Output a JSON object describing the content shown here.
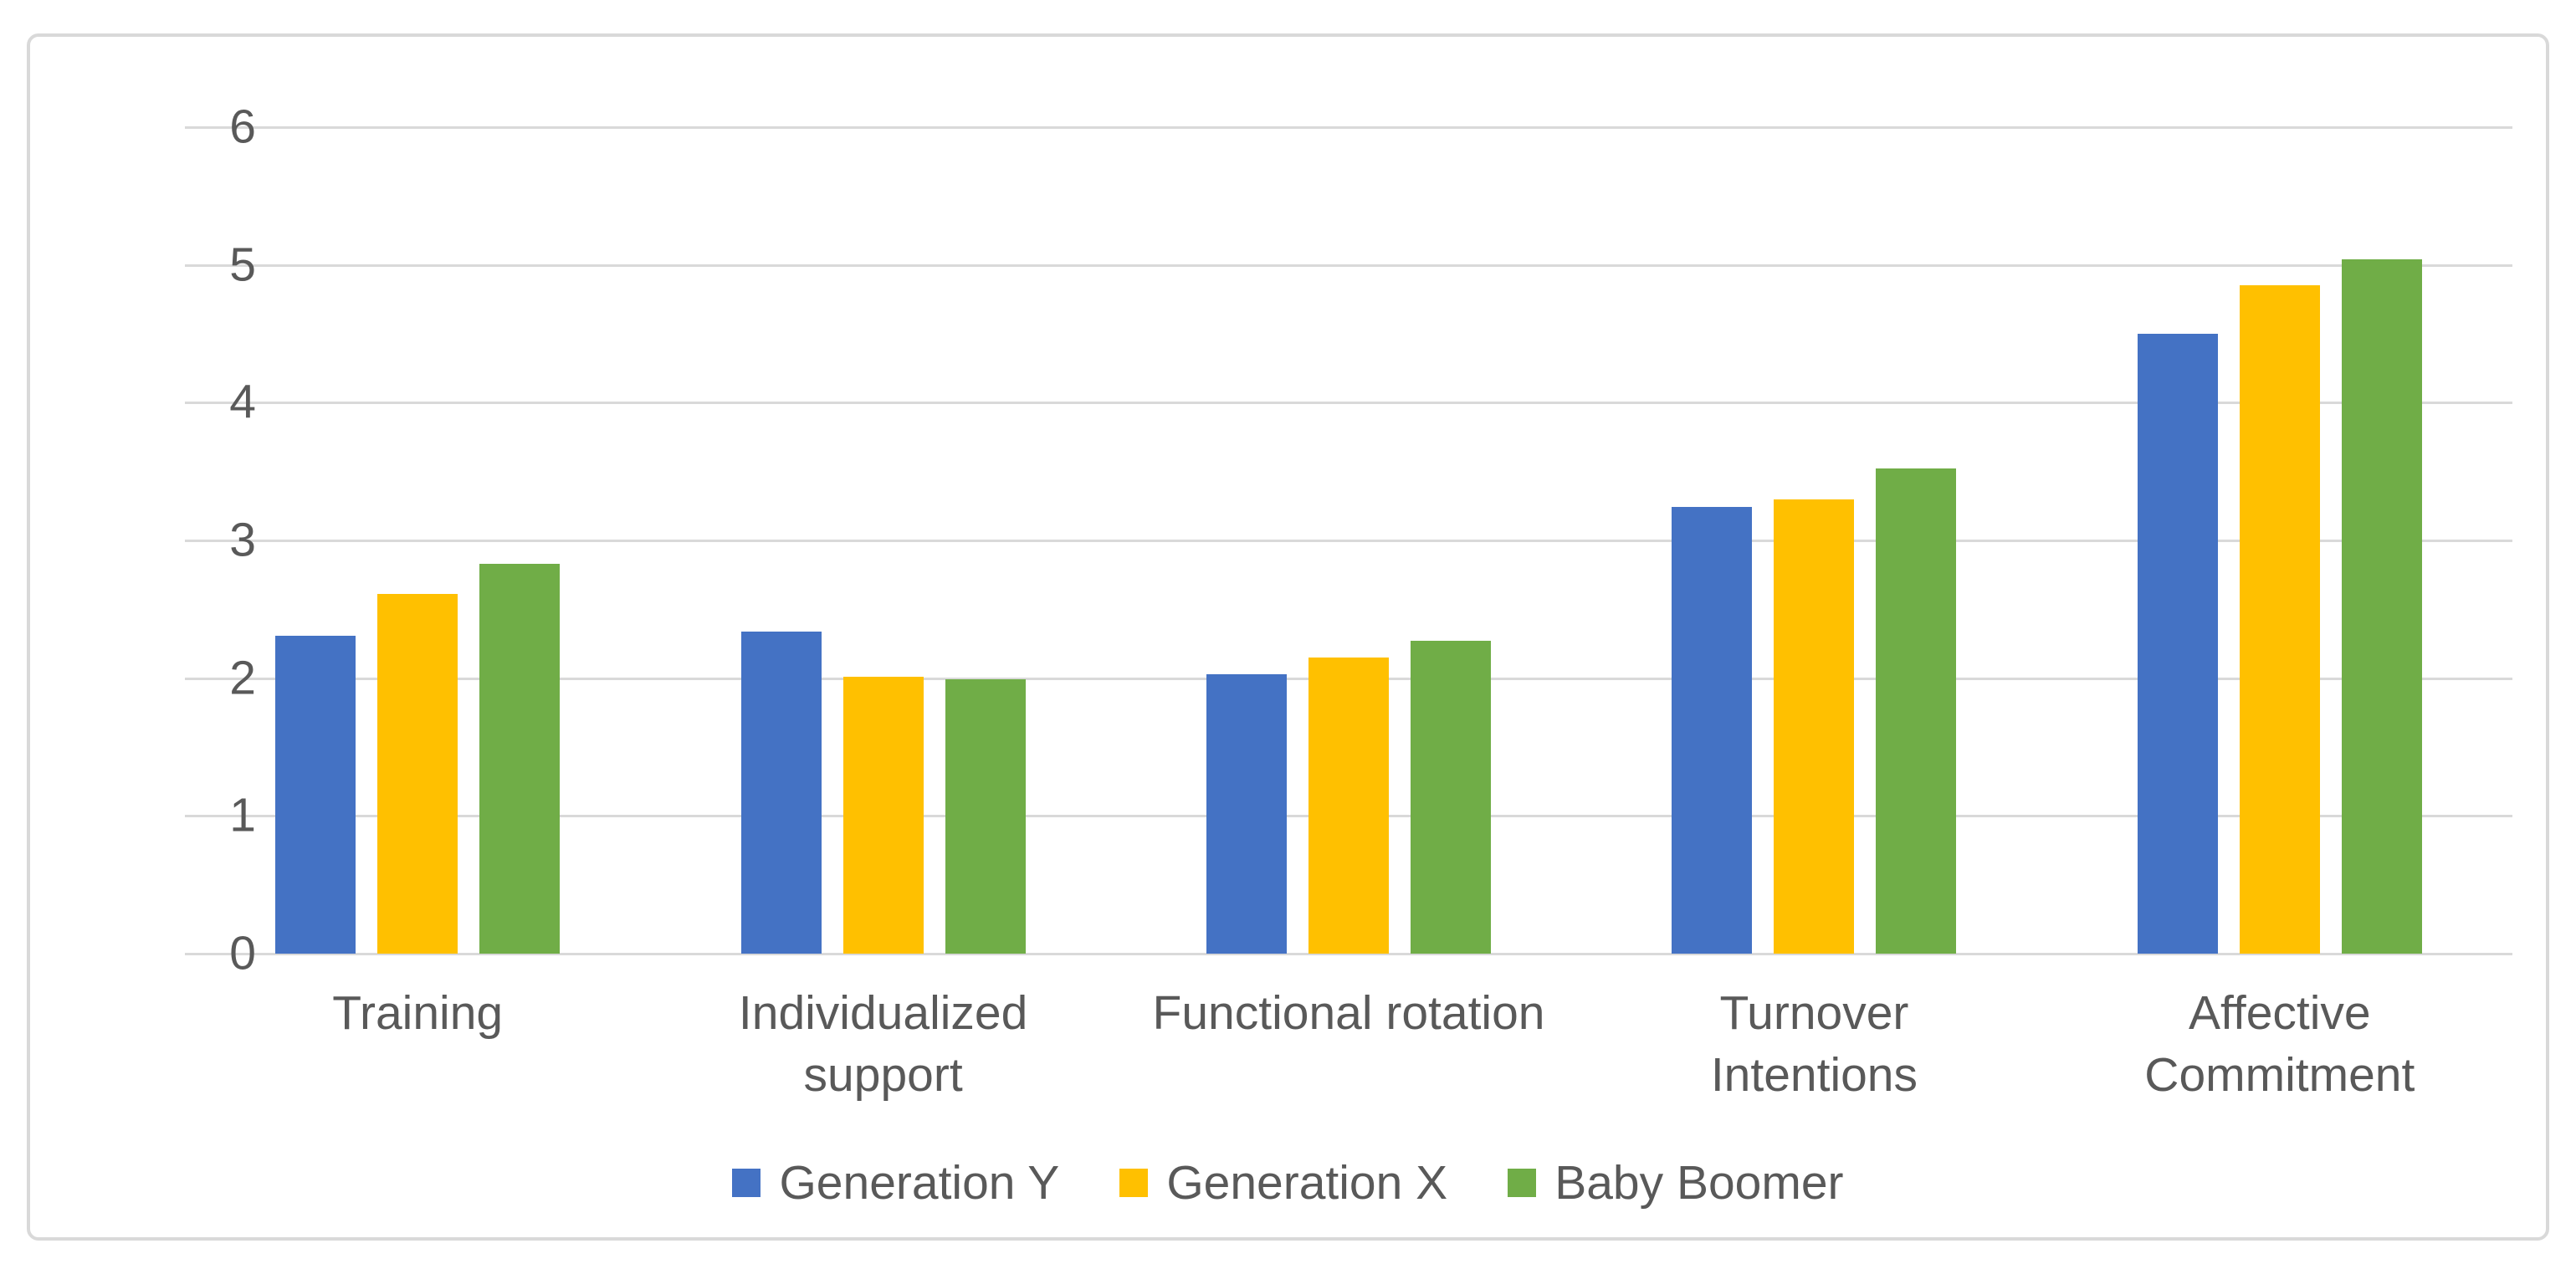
{
  "chart_data": {
    "type": "bar",
    "title": "",
    "xlabel": "",
    "ylabel": "",
    "ylim": [
      0,
      6
    ],
    "yticks": [
      0,
      1,
      2,
      3,
      4,
      5,
      6
    ],
    "grid": true,
    "legend_position": "bottom",
    "categories": [
      "Training",
      "Individualized\nsupport",
      "Functional rotation",
      "Turnover\nIntentions",
      "Affective\nCommitment"
    ],
    "series": [
      {
        "name": "Generation Y",
        "color": "#4472C4",
        "values": [
          2.31,
          2.34,
          2.03,
          3.24,
          4.5
        ]
      },
      {
        "name": "Generation X",
        "color": "#FFC000",
        "values": [
          2.61,
          2.01,
          2.15,
          3.3,
          4.85
        ]
      },
      {
        "name": "Baby Boomer",
        "color": "#70AD47",
        "values": [
          2.83,
          1.99,
          2.27,
          3.52,
          5.04
        ]
      }
    ]
  },
  "style_colors": {
    "axis_text": "#595959",
    "gridline": "#D9D9D9",
    "frame_border": "#D9D9D9",
    "background": "#FFFFFF"
  }
}
